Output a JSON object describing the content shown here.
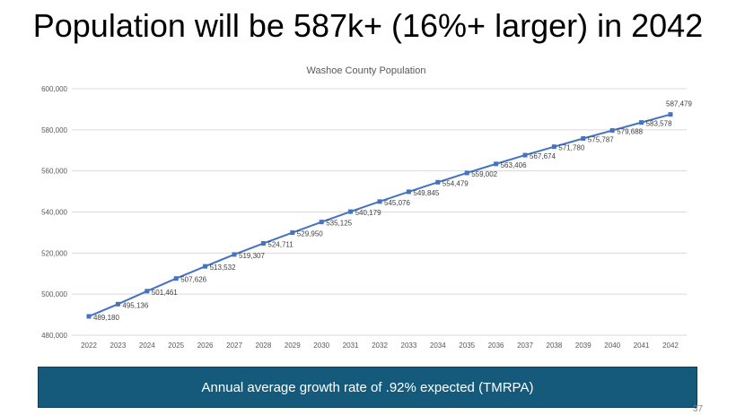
{
  "slide": {
    "title": "Population will be 587k+ (16%+ larger) in 2042",
    "banner": "Annual average growth rate of .92% expected (TMRPA)",
    "page_number": "37",
    "banner_color": "#155a7a"
  },
  "chart_data": {
    "type": "line",
    "title": "Washoe County Population",
    "xlabel": "",
    "ylabel": "",
    "x": [
      2022,
      2023,
      2024,
      2025,
      2026,
      2027,
      2028,
      2029,
      2030,
      2031,
      2032,
      2033,
      2034,
      2035,
      2036,
      2037,
      2038,
      2039,
      2040,
      2041,
      2042
    ],
    "values": [
      489180,
      495136,
      501461,
      507626,
      513532,
      519307,
      524711,
      529950,
      535125,
      540179,
      545076,
      549845,
      554479,
      559002,
      563406,
      567674,
      571780,
      575787,
      579688,
      583578,
      587479
    ],
    "labels": [
      "489,180",
      "495,136",
      "501,461",
      "507,626",
      "513,532",
      "519,307",
      "524,711",
      "529,950",
      "535,125",
      "540,179",
      "545,076",
      "549,845",
      "554,479",
      "559,002",
      "563,406",
      "567,674",
      "571,780",
      "575,787",
      "579,688",
      "583,578",
      "587,479"
    ],
    "ylim": [
      480000,
      600000
    ],
    "yticks": [
      "480,000",
      "500,000",
      "520,000",
      "540,000",
      "560,000",
      "580,000",
      "600,000"
    ],
    "grid": true,
    "marker": "square",
    "line_color": "#4472c4"
  }
}
